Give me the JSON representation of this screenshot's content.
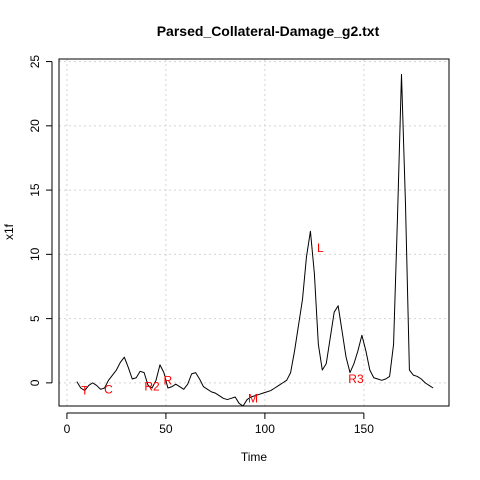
{
  "chart_data": {
    "type": "line",
    "title": "Parsed_Collateral-Damage_g2.txt",
    "xlabel": "Time",
    "ylabel": "x1f",
    "xlim": [
      -4,
      193
    ],
    "ylim": [
      -1.8,
      25.2
    ],
    "xticks": [
      0,
      50,
      100,
      150
    ],
    "yticks": [
      0,
      5,
      10,
      15,
      20,
      25
    ],
    "grid": true,
    "line_color": "#000000",
    "annotation_color": "#ff0000",
    "grid_color": "#d3d3d3",
    "series": [
      {
        "x": [
          5,
          7,
          9,
          11,
          13,
          15,
          17,
          19,
          21,
          23,
          25,
          27,
          29,
          31,
          33,
          35,
          37,
          39,
          41,
          43,
          45,
          47,
          49,
          51,
          53,
          55,
          57,
          59,
          61,
          63,
          65,
          67,
          69,
          71,
          73,
          75,
          77,
          79,
          81,
          83,
          85,
          87,
          89,
          91,
          93,
          95,
          97,
          99,
          101,
          103,
          105,
          107,
          109,
          111,
          113,
          115,
          117,
          119,
          121,
          123,
          125,
          127,
          129,
          131,
          133,
          135,
          137,
          139,
          141,
          143,
          145,
          147,
          149,
          151,
          153,
          155,
          157,
          159,
          161,
          163,
          165,
          167,
          169,
          171,
          173,
          175,
          177,
          179,
          181,
          183,
          185
        ],
        "y": [
          0.1,
          -0.4,
          -0.6,
          -0.2,
          0.0,
          -0.2,
          -0.5,
          -0.4,
          0.2,
          0.6,
          1.0,
          1.6,
          2.0,
          1.2,
          0.3,
          0.4,
          0.9,
          0.8,
          -0.2,
          -0.4,
          0.2,
          1.4,
          0.8,
          -0.4,
          -0.3,
          -0.1,
          -0.3,
          -0.5,
          -0.1,
          0.7,
          0.8,
          0.3,
          -0.3,
          -0.5,
          -0.7,
          -0.8,
          -1.0,
          -1.2,
          -1.3,
          -1.2,
          -1.1,
          -1.6,
          -1.8,
          -1.3,
          -1.1,
          -1.0,
          -0.9,
          -0.8,
          -0.7,
          -0.6,
          -0.4,
          -0.2,
          0.0,
          0.2,
          0.8,
          2.5,
          4.5,
          6.5,
          9.8,
          11.8,
          8.5,
          3.0,
          1.0,
          1.5,
          3.5,
          5.5,
          6.0,
          4.0,
          2.0,
          0.8,
          1.5,
          2.5,
          3.7,
          2.5,
          1.0,
          0.4,
          0.3,
          0.2,
          0.3,
          0.5,
          3.0,
          13.0,
          24.0,
          14.0,
          1.0,
          0.6,
          0.5,
          0.3,
          0.0,
          -0.2,
          -0.4
        ]
      }
    ],
    "annotations": [
      {
        "label": "T",
        "x": 9,
        "y": -0.6
      },
      {
        "label": "C",
        "x": 21,
        "y": -0.5
      },
      {
        "label": "R2",
        "x": 43,
        "y": -0.3
      },
      {
        "label": "R",
        "x": 51,
        "y": 0.2
      },
      {
        "label": "M",
        "x": 94,
        "y": -1.2
      },
      {
        "label": "L",
        "x": 128,
        "y": 10.5
      },
      {
        "label": "R3",
        "x": 146,
        "y": 0.3
      }
    ]
  }
}
